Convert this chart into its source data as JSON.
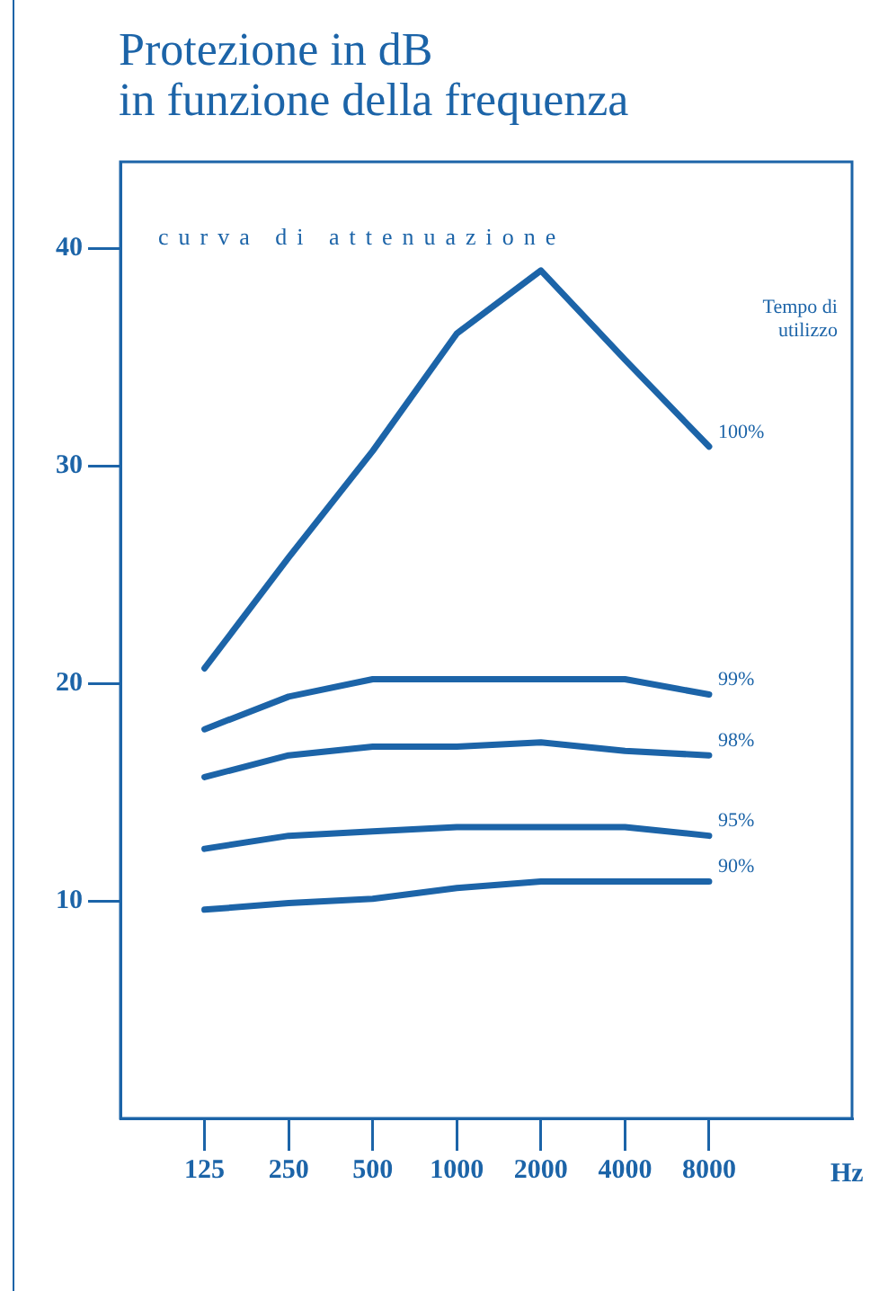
{
  "chart_data": {
    "type": "line",
    "title": "Protezione in dB\nin funzione della frequenza",
    "xlabel": "Hz",
    "legend_title": "Tempo di utilizzo",
    "annotations": [
      "curva di attenuazione"
    ],
    "categories": [
      "125",
      "250",
      "500",
      "1000",
      "2000",
      "4000",
      "8000"
    ],
    "series": [
      {
        "name": "100%",
        "color": "#1c64a8",
        "values": [
          20.7,
          25.8,
          30.7,
          36.1,
          39.0,
          34.9,
          30.9
        ]
      },
      {
        "name": "99%",
        "color": "#1c64a8",
        "values": [
          17.9,
          19.4,
          20.2,
          20.2,
          20.2,
          20.2,
          19.5
        ]
      },
      {
        "name": "98%",
        "color": "#1c64a8",
        "values": [
          15.7,
          16.7,
          17.1,
          17.1,
          17.3,
          16.9,
          16.7
        ]
      },
      {
        "name": "95%",
        "color": "#1c64a8",
        "values": [
          12.4,
          13.0,
          13.2,
          13.4,
          13.4,
          13.4,
          13.0
        ]
      },
      {
        "name": "90%",
        "color": "#1c64a8",
        "values": [
          9.6,
          9.9,
          10.1,
          10.6,
          10.9,
          10.9,
          10.9
        ]
      }
    ],
    "ylim": [
      0,
      44
    ],
    "yticks": [
      10,
      20,
      30,
      40
    ],
    "grid": false,
    "marker": "none"
  }
}
